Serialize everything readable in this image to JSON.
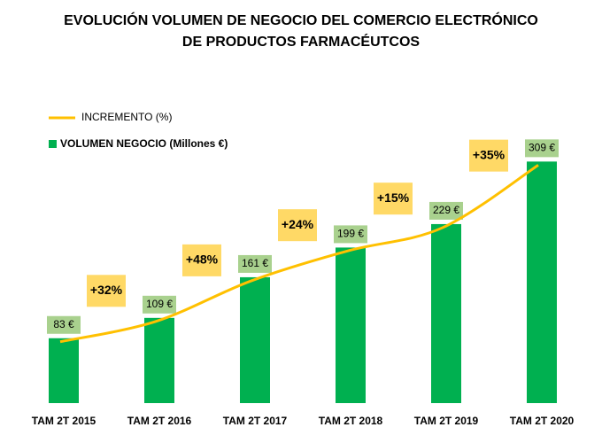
{
  "chart_data": {
    "type": "bar",
    "title": [
      "EVOLUCIÓN  VOLUMEN DE NEGOCIO DEL COMERCIO ELECTRÓNICO",
      "DE PRODUCTOS FARMACÉUTCOS"
    ],
    "categories": [
      "TAM 2T 2015",
      "TAM 2T 2016",
      "TAM 2T 2017",
      "TAM 2T 2018",
      "TAM 2T 2019",
      "TAM 2T 2020"
    ],
    "series": [
      {
        "name": "VOLUMEN NEGOCIO (Millones €)",
        "color": "#00b050",
        "values": [
          83,
          109,
          161,
          199,
          229,
          309
        ],
        "value_labels": [
          "83 €",
          "109 €",
          "161 €",
          "199 €",
          "229 €",
          "309 €"
        ]
      }
    ],
    "increments": {
      "name": "INCREMENTO (%)",
      "color": "#ffc000",
      "values": [
        32,
        48,
        24,
        15,
        35
      ],
      "value_labels": [
        "+32%",
        "+48%",
        "+24%",
        "+15%",
        "+35%"
      ]
    },
    "ylim": [
      0,
      340
    ]
  }
}
